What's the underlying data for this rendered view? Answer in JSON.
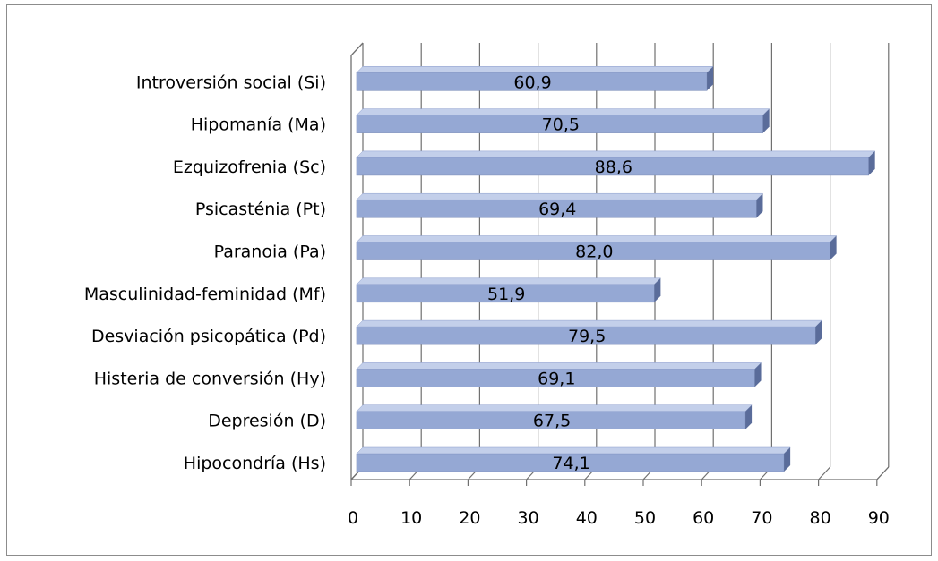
{
  "chart_data": {
    "type": "bar",
    "orientation": "horizontal",
    "style": "3d",
    "categories": [
      "Hipocondría   (Hs)",
      "Depresión  (D)",
      "Histeria de conversión   (Hy)",
      "Desviación psicopática   (Pd)",
      "Masculinidad-feminidad  (Mf)",
      "Paranoia   (Pa)",
      "Psicasténia   (Pt)",
      "Ezquizofrenia   (Sc)",
      "Hipomanía  (Ma)",
      "Introversión social   (Si)"
    ],
    "values": [
      74.1,
      67.5,
      69.1,
      79.5,
      51.9,
      82.0,
      69.4,
      88.6,
      70.5,
      60.9
    ],
    "data_labels": [
      "74,1",
      "67,5",
      "69,1",
      "79,5",
      "51,9",
      "82,0",
      "69,4",
      "88,6",
      "70,5",
      "60,9"
    ],
    "xlim": [
      0,
      90
    ],
    "xticks": [
      "0",
      "10",
      "20",
      "30",
      "40",
      "50",
      "60",
      "70",
      "80",
      "90"
    ],
    "grid": true,
    "legend": "none",
    "bar_color": "#95a8d4",
    "bar_top_color": "#c3cfea",
    "bar_side_color": "#5a6c9a",
    "title": "",
    "xlabel": "",
    "ylabel": ""
  }
}
